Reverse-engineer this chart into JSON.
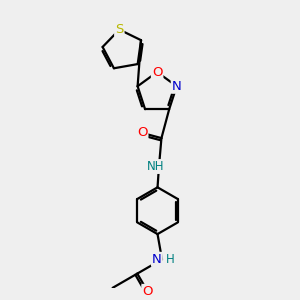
{
  "bg_color": "#efefef",
  "bond_color": "#000000",
  "bond_width": 1.6,
  "atom_colors": {
    "S": "#b8b800",
    "O": "#ff0000",
    "N": "#0000cc",
    "NH": "#008080",
    "C": "#000000"
  },
  "font_size": 8.5,
  "fig_size": [
    3.0,
    3.0
  ],
  "dpi": 100
}
